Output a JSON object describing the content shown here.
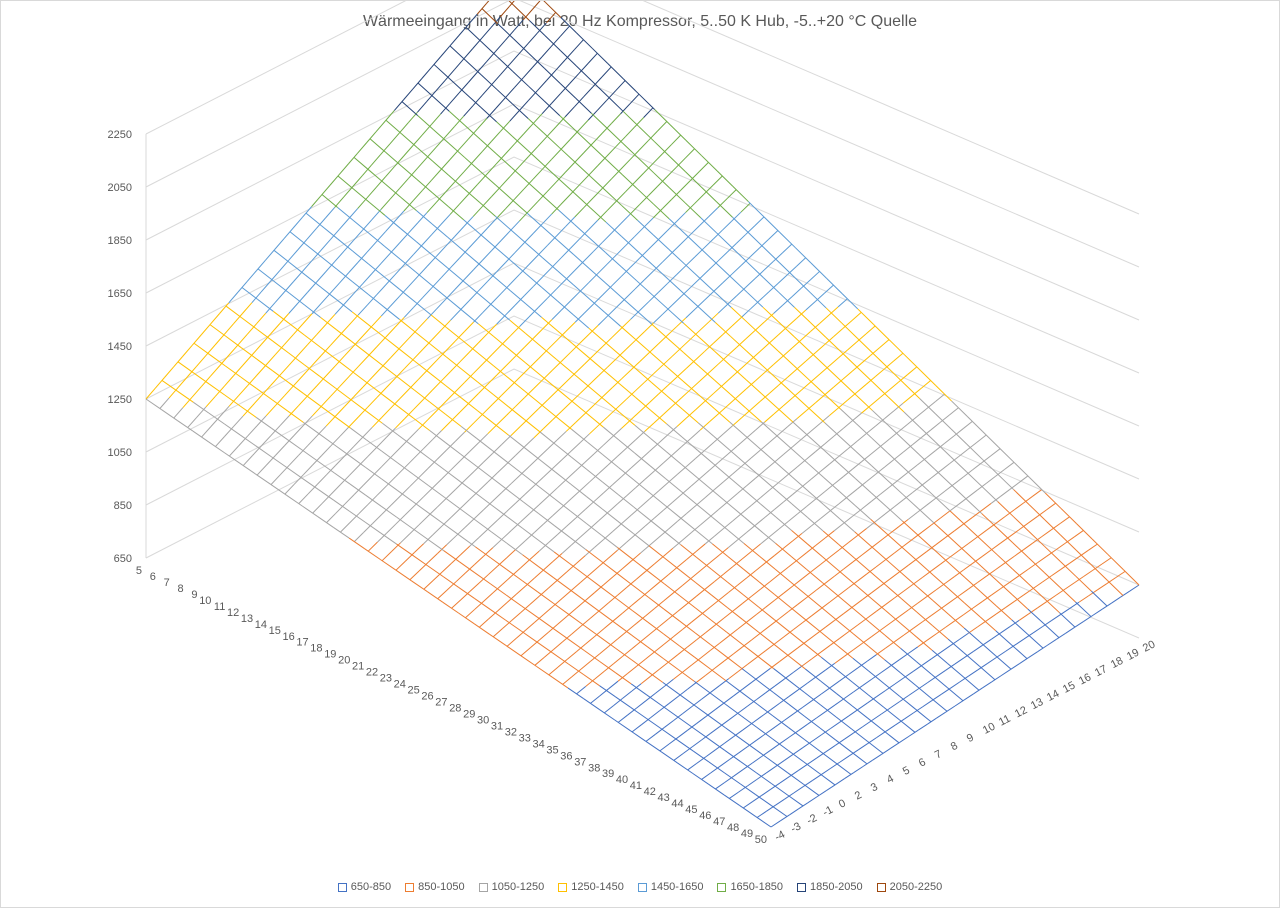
{
  "chart_data": {
    "type": "surface",
    "title": "Wärmeeingang in Watt, bei 20 Hz Kompressor, 5..50 K Hub, -5..+20 °C Quelle",
    "z_ticks": [
      "650",
      "850",
      "1050",
      "1250",
      "1450",
      "1650",
      "1850",
      "2050",
      "2250"
    ],
    "zlim": [
      650,
      2250
    ],
    "hub_ticks": [
      "5",
      "6",
      "7",
      "8",
      "9",
      "10",
      "11",
      "12",
      "13",
      "14",
      "15",
      "16",
      "17",
      "18",
      "19",
      "20",
      "21",
      "22",
      "23",
      "24",
      "25",
      "26",
      "27",
      "28",
      "29",
      "30",
      "31",
      "32",
      "33",
      "34",
      "35",
      "36",
      "37",
      "38",
      "39",
      "40",
      "41",
      "42",
      "43",
      "44",
      "45",
      "46",
      "47",
      "48",
      "49",
      "50"
    ],
    "quelle_ticks": [
      "-4",
      "-3",
      "-2",
      "-1",
      "0",
      "2",
      "3",
      "4",
      "5",
      "6",
      "7",
      "8",
      "9",
      "10",
      "11",
      "12",
      "13",
      "14",
      "15",
      "16",
      "17",
      "18",
      "19",
      "20"
    ],
    "corner_values": {
      "hub5_quelleMin": 1250,
      "hub50_quelleMin": 650,
      "hub5_quelleMax": 2150,
      "hub50_quelleMax": 850
    },
    "bands": [
      {
        "name": "650-850",
        "from": 650,
        "to": 850,
        "color": "#4472c4"
      },
      {
        "name": "850-1050",
        "from": 850,
        "to": 1050,
        "color": "#ed7d31"
      },
      {
        "name": "1050-1250",
        "from": 1050,
        "to": 1250,
        "color": "#a5a5a5"
      },
      {
        "name": "1250-1450",
        "from": 1250,
        "to": 1450,
        "color": "#ffc000"
      },
      {
        "name": "1450-1650",
        "from": 1450,
        "to": 1650,
        "color": "#5b9bd5"
      },
      {
        "name": "1650-1850",
        "from": 1650,
        "to": 1850,
        "color": "#70ad47"
      },
      {
        "name": "1850-2050",
        "from": 1850,
        "to": 2050,
        "color": "#264478"
      },
      {
        "name": "2050-2250",
        "from": 2050,
        "to": 2250,
        "color": "#9e480e"
      }
    ],
    "grid": true,
    "legend_position": "bottom"
  }
}
